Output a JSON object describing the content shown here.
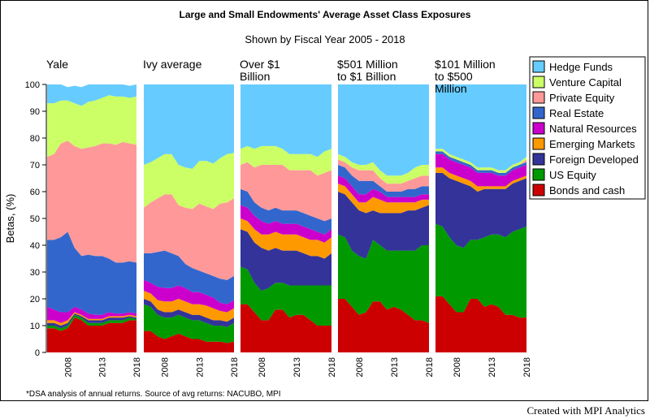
{
  "chart_data": {
    "type": "area",
    "title": "Large and Small Endowments' Average Asset Class Exposures",
    "subtitle": "Shown by Fiscal Year 2005 - 2018",
    "ylabel": "Betas, (%)",
    "ylim": [
      0,
      100
    ],
    "yticks": [
      0,
      10,
      20,
      30,
      40,
      50,
      60,
      70,
      80,
      90,
      100
    ],
    "x": [
      2005,
      2006,
      2007,
      2008,
      2009,
      2010,
      2011,
      2012,
      2013,
      2014,
      2015,
      2016,
      2017,
      2018
    ],
    "xtick_labels": [
      "2008",
      "2013",
      "2018"
    ],
    "xtick_values": [
      2008,
      2013,
      2018
    ],
    "footnote": "*DSA analysis of annual returns. Source of avg returns: NACUBO, MPI",
    "series_order": [
      "Bonds and cash",
      "US Equity",
      "Foreign Developed",
      "Emerging Markets",
      "Natural Resources",
      "Real Estate",
      "Private Equity",
      "Venture Capital",
      "Hedge Funds"
    ],
    "legend": [
      {
        "name": "Hedge Funds",
        "color": "#66ccff"
      },
      {
        "name": "Venture Capital",
        "color": "#ccff66"
      },
      {
        "name": "Private Equity",
        "color": "#ff9999"
      },
      {
        "name": "Real Estate",
        "color": "#3366cc"
      },
      {
        "name": "Natural Resources",
        "color": "#cc00cc"
      },
      {
        "name": "Emerging Markets",
        "color": "#ff9900"
      },
      {
        "name": "Foreign Developed",
        "color": "#333399"
      },
      {
        "name": "US Equity",
        "color": "#009900"
      },
      {
        "name": "Bonds and cash",
        "color": "#cc0000"
      }
    ],
    "panels": [
      {
        "title": "Yale",
        "series": [
          {
            "name": "Bonds and cash",
            "values": [
              9,
              9,
              8,
              9,
              13,
              12,
              10,
              10,
              10,
              11,
              11,
              11,
              12,
              12
            ]
          },
          {
            "name": "US Equity",
            "values": [
              1,
              1,
              1,
              1,
              1,
              1,
              1,
              1,
              1,
              1,
              1,
              1,
              1,
              0.5
            ]
          },
          {
            "name": "Foreign Developed",
            "values": [
              1,
              1,
              1,
              1,
              0.5,
              0.5,
              1,
              1,
              1,
              1,
              1,
              1,
              0.5,
              0.5
            ]
          },
          {
            "name": "Emerging Markets",
            "values": [
              1,
              1,
              1,
              1,
              0.5,
              0.5,
              0.5,
              0.5,
              0.5,
              0.5,
              0.5,
              0.5,
              0.5,
              0.5
            ]
          },
          {
            "name": "Natural Resources",
            "values": [
              5,
              4,
              4,
              3,
              2,
              2,
              2,
              1.5,
              1.5,
              1.5,
              1,
              1,
              1,
              1
            ]
          },
          {
            "name": "Real Estate",
            "values": [
              25,
              26,
              28,
              30,
              22,
              20,
              22,
              22,
              22,
              20,
              19,
              19,
              19,
              19
            ]
          },
          {
            "name": "Private Equity",
            "values": [
              31,
              32,
              35,
              34,
              38,
              40,
              40,
              41,
              42,
              43,
              44,
              45,
              44,
              44
            ]
          },
          {
            "name": "Venture Capital",
            "values": [
              20,
              19,
              16,
              15,
              16,
              16,
              17,
              17,
              17,
              18,
              18,
              17,
              17,
              18
            ]
          },
          {
            "name": "Hedge Funds",
            "values": [
              7,
              7,
              6,
              5,
              6.5,
              7,
              6.5,
              6,
              6,
              5,
              4.5,
              4.5,
              4.5,
              4.5
            ]
          }
        ]
      },
      {
        "title": "Ivy average",
        "series": [
          {
            "name": "Bonds and cash",
            "values": [
              8,
              8,
              6,
              5,
              6,
              7,
              6,
              5,
              5,
              4,
              4,
              4,
              3.5,
              4
            ]
          },
          {
            "name": "US Equity",
            "values": [
              10,
              9,
              8,
              8,
              7,
              7,
              7,
              7,
              7,
              7,
              6,
              6,
              6,
              7
            ]
          },
          {
            "name": "Foreign Developed",
            "values": [
              2,
              2,
              2,
              2,
              2,
              2,
              2,
              2,
              2,
              2,
              2,
              2,
              2,
              2
            ]
          },
          {
            "name": "Emerging Markets",
            "values": [
              3,
              3,
              3.5,
              4,
              4,
              4,
              4,
              4,
              4,
              4.5,
              4.5,
              3.5,
              3.5,
              3.5
            ]
          },
          {
            "name": "Natural Resources",
            "values": [
              4,
              4,
              5,
              5,
              5,
              5,
              5,
              4.5,
              4.5,
              4,
              4,
              3,
              3,
              3
            ]
          },
          {
            "name": "Real Estate",
            "values": [
              10,
              11,
              13,
              14,
              13,
              11,
              9,
              9,
              8,
              8,
              8,
              9,
              9,
              9
            ]
          },
          {
            "name": "Private Equity",
            "values": [
              17,
              19,
              20,
              21,
              22,
              19,
              21,
              22,
              25,
              25,
              25,
              28,
              29,
              29
            ]
          },
          {
            "name": "Venture Capital",
            "values": [
              16,
              15,
              15,
              15,
              15,
              15,
              15,
              15,
              16,
              17,
              17,
              17,
              18,
              17
            ]
          },
          {
            "name": "Hedge Funds",
            "values": [
              30,
              29,
              27.5,
              26,
              26,
              30,
              31,
              31.5,
              28.5,
              28.5,
              29.5,
              27.5,
              26,
              25.5
            ]
          }
        ]
      },
      {
        "title": "Over $1 Billion",
        "series": [
          {
            "name": "Bonds and cash",
            "values": [
              18,
              18,
              15,
              12,
              12,
              16,
              16,
              13,
              14,
              14,
              12,
              10,
              10,
              10
            ]
          },
          {
            "name": "US Equity",
            "values": [
              14,
              13,
              11,
              11,
              12,
              10,
              10,
              12,
              11,
              11,
              13,
              15,
              15,
              15
            ]
          },
          {
            "name": "Foreign Developed",
            "values": [
              14,
              14,
              15,
              16,
              14,
              13,
              12,
              13,
              13,
              12,
              11,
              11,
              10,
              12
            ]
          },
          {
            "name": "Emerging Markets",
            "values": [
              4,
              4,
              5,
              5,
              6,
              6,
              6,
              6,
              6,
              6,
              6,
              6,
              6,
              6
            ]
          },
          {
            "name": "Natural Resources",
            "values": [
              5,
              5,
              5,
              5,
              4,
              4,
              4,
              4,
              4,
              4,
              4,
              3,
              3,
              3
            ]
          },
          {
            "name": "Real Estate",
            "values": [
              6,
              6,
              5,
              5,
              5,
              5,
              5,
              5,
              5,
              5,
              5,
              5,
              5,
              4
            ]
          },
          {
            "name": "Private Equity",
            "values": [
              9,
              11,
              13,
              16,
              17,
              16,
              17,
              15,
              15,
              16,
              17,
              16,
              18,
              18
            ]
          },
          {
            "name": "Venture Capital",
            "values": [
              6,
              6,
              7,
              7,
              7,
              7,
              6,
              6,
              6,
              6,
              6,
              7,
              8,
              8
            ]
          },
          {
            "name": "Hedge Funds",
            "values": [
              24,
              23,
              24,
              23,
              23,
              23,
              24,
              26,
              26,
              26,
              26,
              27,
              25,
              24
            ]
          }
        ]
      },
      {
        "title": "$501 Million to $1 Billion",
        "series": [
          {
            "name": "Bonds and cash",
            "values": [
              20,
              20,
              17,
              14,
              15,
              19,
              19,
              16,
              17,
              16,
              14,
              12,
              12,
              11
            ]
          },
          {
            "name": "US Equity",
            "values": [
              24,
              23,
              21,
              22,
              20,
              23,
              21,
              22,
              21,
              22,
              24,
              26,
              28,
              29
            ]
          },
          {
            "name": "Foreign Developed",
            "values": [
              16,
              16,
              18,
              17,
              17,
              11,
              12,
              14,
              14,
              14,
              15,
              15,
              14,
              15
            ]
          },
          {
            "name": "Emerging Markets",
            "values": [
              3,
              3,
              3,
              3,
              4,
              5,
              5,
              4,
              4,
              4,
              3,
              3,
              3,
              2
            ]
          },
          {
            "name": "Natural Resources",
            "values": [
              3,
              3,
              3,
              3,
              3,
              3,
              3,
              2,
              2,
              2,
              2,
              2,
              2,
              2
            ]
          },
          {
            "name": "Real Estate",
            "values": [
              4,
              4,
              4,
              5,
              5,
              3,
              2,
              2,
              2,
              2,
              3,
              3,
              3,
              3
            ]
          },
          {
            "name": "Private Equity",
            "values": [
              2,
              2,
              3,
              4,
              4,
              4,
              3,
              3,
              3,
              3,
              3,
              4,
              4,
              4
            ]
          },
          {
            "name": "Venture Capital",
            "values": [
              2,
              2,
              2,
              2,
              2,
              3,
              3,
              3,
              3,
              3,
              3,
              4,
              4,
              4
            ]
          },
          {
            "name": "Hedge Funds",
            "values": [
              26,
              27,
              29,
              30,
              30,
              29,
              32,
              34,
              34,
              34,
              33,
              31,
              30,
              30
            ]
          }
        ]
      },
      {
        "title": "$101 Million to $500 Million",
        "series": [
          {
            "name": "Bonds and cash",
            "values": [
              21,
              21,
              18,
              15,
              15,
              20,
              20,
              17,
              18,
              17,
              14,
              14,
              13,
              13
            ]
          },
          {
            "name": "US Equity",
            "values": [
              27,
              26,
              25,
              25,
              24,
              22,
              22,
              26,
              26,
              27,
              29,
              31,
              33,
              34
            ]
          },
          {
            "name": "Foreign Developed",
            "values": [
              19,
              20,
              22,
              24,
              24,
              20,
              18,
              18,
              17,
              17,
              18,
              18,
              18,
              18
            ]
          },
          {
            "name": "Emerging Markets",
            "values": [
              2,
              2,
              2,
              2,
              2,
              2,
              2,
              1,
              1,
              1,
              1,
              1,
              1,
              1
            ]
          },
          {
            "name": "Natural Resources",
            "values": [
              5,
              5,
              5,
              5,
              5,
              5,
              5,
              5,
              5,
              4,
              4,
              4,
              4,
              4
            ]
          },
          {
            "name": "Real Estate",
            "values": [
              1,
              1,
              1,
              1,
              1,
              1,
              1,
              1,
              1,
              1,
              1,
              1,
              1,
              1
            ]
          },
          {
            "name": "Private Equity",
            "values": [
              0,
              0,
              0,
              0,
              0,
              0,
              0,
              0,
              0,
              0,
              0,
              0,
              0,
              1
            ]
          },
          {
            "name": "Venture Capital",
            "values": [
              1,
              1,
              1,
              1,
              1,
              1,
              1,
              1,
              1,
              1,
              1,
              1,
              1,
              1
            ]
          },
          {
            "name": "Hedge Funds",
            "values": [
              24,
              24,
              26,
              27,
              28,
              29,
              31,
              31,
              31,
              32,
              32,
              30,
              29,
              27
            ]
          }
        ]
      }
    ]
  },
  "credit": "Created with MPI Analytics"
}
